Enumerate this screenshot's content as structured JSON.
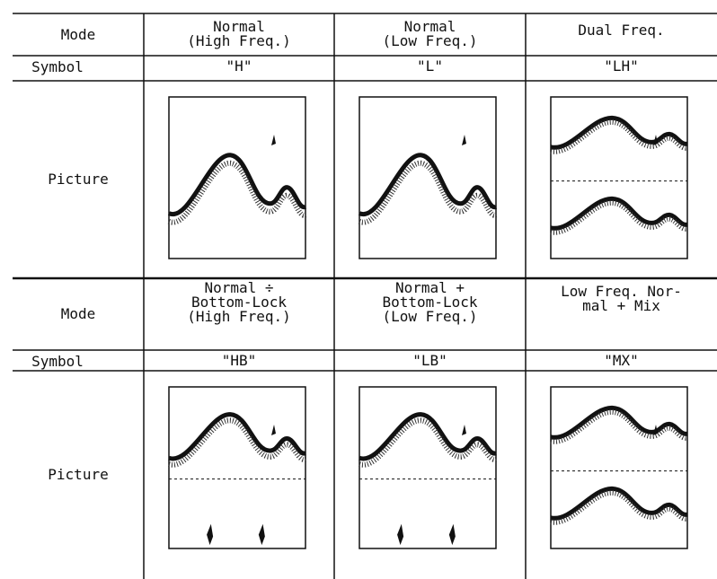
{
  "table": {
    "blocks": [
      {
        "mode_header": "Mode",
        "modes": [
          [
            "Normal",
            "(High Freq.)"
          ],
          [
            "Normal",
            "(Low Freq.)"
          ],
          [
            "Dual Freq."
          ]
        ],
        "symbol_header": "Symbol",
        "symbols": [
          "\"H\"",
          "\"L\"",
          "\"LH\""
        ],
        "picture_header": "Picture"
      },
      {
        "mode_header": "Mode",
        "modes": [
          [
            "Normal ÷",
            "Bottom-Lock",
            "(High Freq.)"
          ],
          [
            "Normal +",
            "Bottom-Lock",
            "(Low Freq.)"
          ],
          [
            "Low Freq. Nor-",
            "mal + Mix"
          ]
        ],
        "symbol_header": "Symbol",
        "symbols": [
          "\"HB\"",
          "\"LB\"",
          "\"MX\""
        ],
        "picture_header": "Picture"
      }
    ]
  }
}
